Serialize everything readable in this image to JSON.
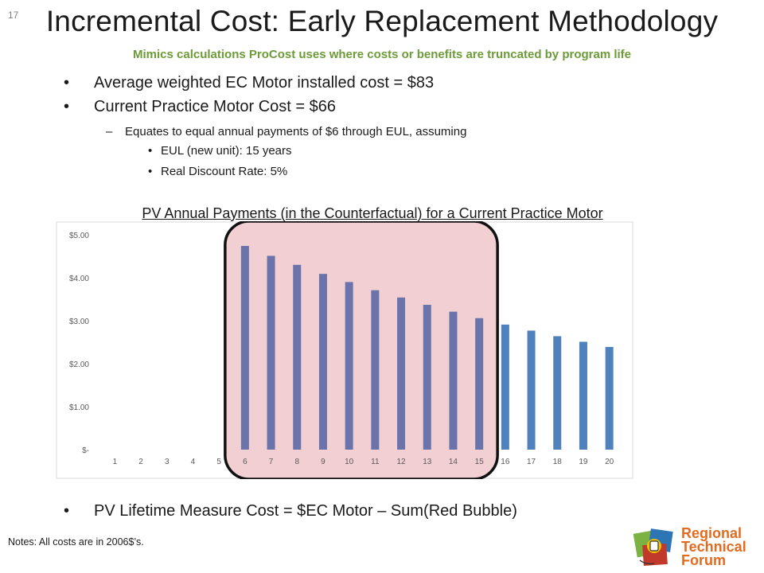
{
  "slide": {
    "number": "17",
    "title": "Incremental Cost: Early Replacement Methodology",
    "subtitle": "Mimics calculations ProCost uses where costs or benefits are truncated by program life"
  },
  "bullets": {
    "avg_cost": "Average weighted EC Motor installed cost = $83",
    "current_practice": "Current Practice Motor Cost = $66",
    "equates": "Equates to equal annual payments of $6 through EUL, assuming",
    "eul": "EUL (new unit): 15 years",
    "discount": "Real Discount Rate: 5%",
    "pv_lifetime": "PV Lifetime Measure Cost = $EC Motor – Sum(Red Bubble)"
  },
  "notes": "Notes: All costs are in 2006$’s.",
  "logo": {
    "line1": "Regional",
    "line2": "Technical",
    "line3": "Forum",
    "colors": {
      "text": "#e26b20",
      "green": "#7bb241",
      "blue": "#2e75b6",
      "red": "#c0392b",
      "yellow": "#f2c200"
    }
  },
  "chart_data": {
    "type": "bar",
    "title": "PV Annual Payments (in the Counterfactual) for a Current Practice Motor",
    "categories": [
      "1",
      "2",
      "3",
      "4",
      "5",
      "6",
      "7",
      "8",
      "9",
      "10",
      "11",
      "12",
      "13",
      "14",
      "15",
      "16",
      "17",
      "18",
      "19",
      "20"
    ],
    "values": [
      0,
      0,
      0,
      0,
      0,
      4.74,
      4.51,
      4.3,
      4.09,
      3.9,
      3.71,
      3.54,
      3.37,
      3.21,
      3.06,
      2.91,
      2.77,
      2.64,
      2.51,
      2.39
    ],
    "yticks": [
      "$-",
      "$1.00",
      "$2.00",
      "$3.00",
      "$4.00",
      "$5.00"
    ],
    "ylim": [
      0,
      5
    ],
    "bar_color": "#4f81bd",
    "highlight": {
      "from": "6",
      "to": "15",
      "fill": "#e6a8ae",
      "bar_color": "#6a74ab"
    },
    "grid": false,
    "legend": "none"
  }
}
